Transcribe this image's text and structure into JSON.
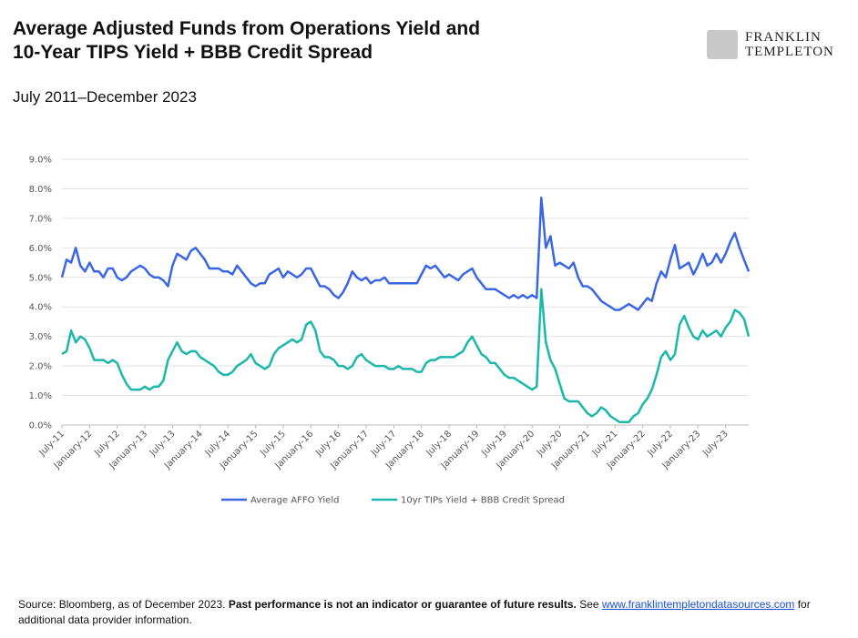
{
  "logo": [
    "FRANKLIN",
    "TEMPLETON"
  ],
  "footnote": {
    "text": "Source: Bloomberg, as of December 2023.",
    "bold": "Past performance is not an indicator or guarantee of future results.",
    "see": "See",
    "link": "www.franklintempletondatasources.com",
    "end": "for additional data provider information."
  },
  "chart_data": {
    "type": "line",
    "title": [
      "Average Adjusted Funds from Operations Yield and",
      "10-Year TIPS Yield + BBB Credit Spread"
    ],
    "subtitle": "July 2011–December 2023",
    "categories": [
      "July-11",
      null,
      null,
      null,
      null,
      null,
      "January-12",
      null,
      null,
      null,
      null,
      null,
      "July-12",
      null,
      null,
      null,
      null,
      null,
      "January-13",
      null,
      null,
      null,
      null,
      null,
      "July-13",
      null,
      null,
      null,
      null,
      null,
      "January-14",
      null,
      null,
      null,
      null,
      null,
      "July-14",
      null,
      null,
      null,
      null,
      null,
      "January-15",
      null,
      null,
      null,
      null,
      null,
      "July-15",
      null,
      null,
      null,
      null,
      null,
      "January-16",
      null,
      null,
      null,
      null,
      null,
      "July-16",
      null,
      null,
      null,
      null,
      null,
      "January-17",
      null,
      null,
      null,
      null,
      null,
      "July-17",
      null,
      null,
      null,
      null,
      null,
      "January-18",
      null,
      null,
      null,
      null,
      null,
      "July-18",
      null,
      null,
      null,
      null,
      null,
      "January-19",
      null,
      null,
      null,
      null,
      null,
      "July-19",
      null,
      null,
      null,
      null,
      null,
      "January-20",
      null,
      null,
      null,
      null,
      null,
      "July-20",
      null,
      null,
      null,
      null,
      null,
      "January-21",
      null,
      null,
      null,
      null,
      null,
      "July-21",
      null,
      null,
      null,
      null,
      null,
      "January-22",
      null,
      null,
      null,
      null,
      null,
      "July-22",
      null,
      null,
      null,
      null,
      null,
      "January-23",
      null,
      null,
      null,
      null,
      null,
      "July-23",
      null,
      null,
      null,
      null,
      null
    ],
    "series": [
      {
        "name": "Average AFFO Yield",
        "color": "#3a66e6",
        "values": [
          5.0,
          5.6,
          5.5,
          6.0,
          5.4,
          5.2,
          5.5,
          5.2,
          5.2,
          5.0,
          5.3,
          5.3,
          5.0,
          4.9,
          5.0,
          5.2,
          5.3,
          5.4,
          5.3,
          5.1,
          5.0,
          5.0,
          4.9,
          4.7,
          5.4,
          5.8,
          5.7,
          5.6,
          5.9,
          6.0,
          5.8,
          5.6,
          5.3,
          5.3,
          5.3,
          5.2,
          5.2,
          5.1,
          5.4,
          5.2,
          5.0,
          4.8,
          4.7,
          4.8,
          4.8,
          5.1,
          5.2,
          5.3,
          5.0,
          5.2,
          5.1,
          5.0,
          5.1,
          5.3,
          5.3,
          5.0,
          4.7,
          4.7,
          4.6,
          4.4,
          4.3,
          4.5,
          4.8,
          5.2,
          5.0,
          4.9,
          5.0,
          4.8,
          4.9,
          4.9,
          5.0,
          4.8,
          4.8,
          4.8,
          4.8,
          4.8,
          4.8,
          4.8,
          5.1,
          5.4,
          5.3,
          5.4,
          5.2,
          5.0,
          5.1,
          5.0,
          4.9,
          5.1,
          5.2,
          5.3,
          5.0,
          4.8,
          4.6,
          4.6,
          4.6,
          4.5,
          4.4,
          4.3,
          4.4,
          4.3,
          4.4,
          4.3,
          4.4,
          4.3,
          7.7,
          6.0,
          6.4,
          5.4,
          5.5,
          5.4,
          5.3,
          5.5,
          5.0,
          4.7,
          4.7,
          4.6,
          4.4,
          4.2,
          4.1,
          4.0,
          3.9,
          3.9,
          4.0,
          4.1,
          4.0,
          3.9,
          4.1,
          4.3,
          4.2,
          4.8,
          5.2,
          5.0,
          5.6,
          6.1,
          5.3,
          5.4,
          5.5,
          5.1,
          5.4,
          5.8,
          5.4,
          5.5,
          5.8,
          5.5,
          5.8,
          6.2,
          6.5,
          6.0,
          5.6,
          5.2
        ]
      },
      {
        "name": "10yr TIPs Yield + BBB Credit Spread",
        "color": "#1ab8aa",
        "values": [
          2.4,
          2.5,
          3.2,
          2.8,
          3.0,
          2.9,
          2.6,
          2.2,
          2.2,
          2.2,
          2.1,
          2.2,
          2.1,
          1.7,
          1.4,
          1.2,
          1.2,
          1.2,
          1.3,
          1.2,
          1.3,
          1.3,
          1.5,
          2.2,
          2.5,
          2.8,
          2.5,
          2.4,
          2.5,
          2.5,
          2.3,
          2.2,
          2.1,
          2.0,
          1.8,
          1.7,
          1.7,
          1.8,
          2.0,
          2.1,
          2.2,
          2.4,
          2.1,
          2.0,
          1.9,
          2.0,
          2.4,
          2.6,
          2.7,
          2.8,
          2.9,
          2.8,
          2.9,
          3.4,
          3.5,
          3.2,
          2.5,
          2.3,
          2.3,
          2.2,
          2.0,
          2.0,
          1.9,
          2.0,
          2.3,
          2.4,
          2.2,
          2.1,
          2.0,
          2.0,
          2.0,
          1.9,
          1.9,
          2.0,
          1.9,
          1.9,
          1.9,
          1.8,
          1.8,
          2.1,
          2.2,
          2.2,
          2.3,
          2.3,
          2.3,
          2.3,
          2.4,
          2.5,
          2.8,
          3.0,
          2.7,
          2.4,
          2.3,
          2.1,
          2.1,
          1.9,
          1.7,
          1.6,
          1.6,
          1.5,
          1.4,
          1.3,
          1.2,
          1.3,
          4.6,
          2.8,
          2.2,
          1.9,
          1.4,
          0.9,
          0.8,
          0.8,
          0.8,
          0.6,
          0.4,
          0.3,
          0.4,
          0.6,
          0.5,
          0.3,
          0.2,
          0.1,
          0.1,
          0.1,
          0.3,
          0.4,
          0.7,
          0.9,
          1.2,
          1.7,
          2.3,
          2.5,
          2.2,
          2.4,
          3.4,
          3.7,
          3.3,
          3.0,
          2.9,
          3.2,
          3.0,
          3.1,
          3.2,
          3.0,
          3.3,
          3.5,
          3.9,
          3.8,
          3.6,
          3.0
        ]
      }
    ],
    "ylim": [
      0,
      9
    ],
    "yticks": [
      {
        "value": 0,
        "label": "0.0%"
      },
      {
        "value": 1,
        "label": "1.0%"
      },
      {
        "value": 2,
        "label": "2.0%"
      },
      {
        "value": 3,
        "label": "3.0%"
      },
      {
        "value": 4,
        "label": "4.0%"
      },
      {
        "value": 5,
        "label": "5.0%"
      },
      {
        "value": 6,
        "label": "6.0%"
      },
      {
        "value": 7,
        "label": "7.0%"
      },
      {
        "value": 8,
        "label": "8.0%"
      },
      {
        "value": 9,
        "label": "9.0%"
      }
    ],
    "grid": true,
    "legend": "bottom"
  }
}
